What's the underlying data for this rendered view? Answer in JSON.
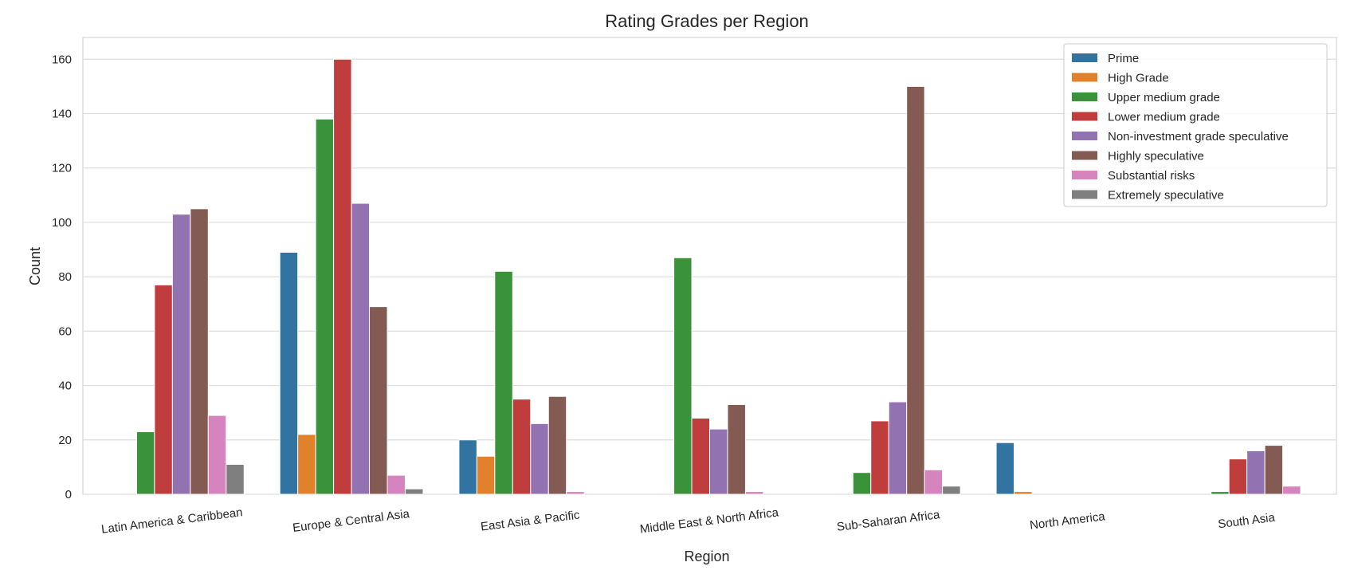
{
  "chart_data": {
    "type": "bar",
    "title": "Rating Grades per Region",
    "xlabel": "Region",
    "ylabel": "Count",
    "ylim": [
      0,
      168
    ],
    "yticks": [
      0,
      20,
      40,
      60,
      80,
      100,
      120,
      140,
      160
    ],
    "grid": true,
    "legend_position": "top-right",
    "categories": [
      "Latin America & Caribbean",
      "Europe & Central Asia",
      "East Asia & Pacific",
      "Middle East & North Africa",
      "Sub-Saharan Africa",
      "North America",
      "South Asia"
    ],
    "series": [
      {
        "name": "Prime",
        "color": "#3274a1",
        "values": [
          0,
          89,
          20,
          0,
          0,
          19,
          0
        ]
      },
      {
        "name": "High Grade",
        "color": "#e1812c",
        "values": [
          0,
          22,
          14,
          0,
          0,
          1,
          0
        ]
      },
      {
        "name": "Upper medium grade",
        "color": "#3a923a",
        "values": [
          23,
          138,
          82,
          87,
          8,
          0,
          1
        ]
      },
      {
        "name": "Lower medium grade",
        "color": "#c03d3e",
        "values": [
          77,
          160,
          35,
          28,
          27,
          0,
          13
        ]
      },
      {
        "name": "Non-investment grade speculative",
        "color": "#9372b2",
        "values": [
          103,
          107,
          26,
          24,
          34,
          0,
          16
        ]
      },
      {
        "name": "Highly speculative",
        "color": "#845b53",
        "values": [
          105,
          69,
          36,
          33,
          150,
          0,
          18
        ]
      },
      {
        "name": "Substantial risks",
        "color": "#d684bd",
        "values": [
          29,
          7,
          1,
          1,
          9,
          0,
          3
        ]
      },
      {
        "name": "Extremely speculative",
        "color": "#7f7f7f",
        "values": [
          11,
          2,
          0,
          0,
          3,
          0,
          0
        ]
      }
    ]
  }
}
